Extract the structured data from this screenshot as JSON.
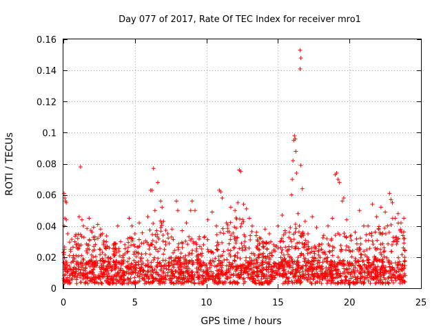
{
  "chart_data": {
    "type": "scatter",
    "title": "Day 077 of 2017, Rate Of TEC Index for receiver mro1",
    "xlabel": "GPS time / hours",
    "ylabel": "ROTI / TECUs",
    "xlim": [
      0,
      25
    ],
    "ylim": [
      0,
      0.16
    ],
    "xticks": [
      0,
      5,
      10,
      15,
      20,
      25
    ],
    "xtick_labels": [
      "0",
      "5",
      "10",
      "15",
      "20",
      "25"
    ],
    "yticks": [
      0,
      0.02,
      0.04,
      0.06,
      0.08,
      0.1,
      0.12,
      0.14,
      0.16
    ],
    "ytick_labels": [
      "0",
      "0.02",
      "0.04",
      "0.06",
      "0.08",
      "0.1",
      "0.12",
      "0.14",
      "0.16"
    ],
    "grid": true,
    "marker": "+",
    "color": "#ff0000",
    "series": [
      {
        "name": "ROTI",
        "points": [
          [
            0.05,
            0.061
          ],
          [
            0.1,
            0.058
          ],
          [
            0.15,
            0.056
          ],
          [
            0.2,
            0.055
          ],
          [
            0.1,
            0.045
          ],
          [
            0.2,
            0.044
          ],
          [
            0.05,
            0.04
          ],
          [
            0.3,
            0.035
          ],
          [
            0.5,
            0.025
          ],
          [
            0.7,
            0.021
          ],
          [
            0.9,
            0.028
          ],
          [
            1.0,
            0.032
          ],
          [
            1.1,
            0.046
          ],
          [
            1.2,
            0.078
          ],
          [
            1.3,
            0.044
          ],
          [
            1.4,
            0.04
          ],
          [
            1.6,
            0.024
          ],
          [
            1.8,
            0.045
          ],
          [
            2.0,
            0.036
          ],
          [
            2.2,
            0.033
          ],
          [
            2.4,
            0.041
          ],
          [
            2.6,
            0.038
          ],
          [
            2.8,
            0.028
          ],
          [
            3.0,
            0.03
          ],
          [
            3.2,
            0.026
          ],
          [
            3.5,
            0.022
          ],
          [
            3.8,
            0.04
          ],
          [
            4.0,
            0.03
          ],
          [
            4.3,
            0.028
          ],
          [
            4.6,
            0.045
          ],
          [
            4.8,
            0.04
          ],
          [
            5.0,
            0.035
          ],
          [
            5.3,
            0.042
          ],
          [
            5.6,
            0.029
          ],
          [
            5.9,
            0.046
          ],
          [
            6.1,
            0.063
          ],
          [
            6.2,
            0.063
          ],
          [
            6.3,
            0.077
          ],
          [
            6.4,
            0.05
          ],
          [
            6.6,
            0.068
          ],
          [
            6.8,
            0.056
          ],
          [
            6.9,
            0.052
          ],
          [
            7.0,
            0.043
          ],
          [
            7.3,
            0.035
          ],
          [
            7.6,
            0.038
          ],
          [
            7.9,
            0.056
          ],
          [
            8.0,
            0.05
          ],
          [
            8.3,
            0.037
          ],
          [
            8.6,
            0.042
          ],
          [
            8.9,
            0.05
          ],
          [
            9.0,
            0.056
          ],
          [
            9.2,
            0.05
          ],
          [
            9.5,
            0.033
          ],
          [
            9.8,
            0.028
          ],
          [
            10.1,
            0.044
          ],
          [
            10.4,
            0.049
          ],
          [
            10.7,
            0.04
          ],
          [
            10.9,
            0.063
          ],
          [
            11.0,
            0.062
          ],
          [
            11.1,
            0.058
          ],
          [
            11.4,
            0.042
          ],
          [
            11.7,
            0.052
          ],
          [
            12.0,
            0.05
          ],
          [
            12.2,
            0.055
          ],
          [
            12.3,
            0.076
          ],
          [
            12.4,
            0.075
          ],
          [
            12.6,
            0.054
          ],
          [
            12.8,
            0.051
          ],
          [
            13.0,
            0.045
          ],
          [
            13.2,
            0.04
          ],
          [
            13.5,
            0.036
          ],
          [
            13.8,
            0.032
          ],
          [
            14.1,
            0.038
          ],
          [
            14.4,
            0.035
          ],
          [
            14.7,
            0.028
          ],
          [
            15.0,
            0.04
          ],
          [
            15.3,
            0.047
          ],
          [
            15.5,
            0.037
          ],
          [
            15.8,
            0.036
          ],
          [
            15.95,
            0.06
          ],
          [
            16.0,
            0.07
          ],
          [
            16.05,
            0.082
          ],
          [
            16.1,
            0.095
          ],
          [
            16.15,
            0.098
          ],
          [
            16.2,
            0.096
          ],
          [
            16.25,
            0.088
          ],
          [
            16.3,
            0.074
          ],
          [
            16.4,
            0.048
          ],
          [
            16.5,
            0.04
          ],
          [
            16.55,
            0.153
          ],
          [
            16.6,
            0.148
          ],
          [
            16.55,
            0.141
          ],
          [
            16.6,
            0.079
          ],
          [
            16.7,
            0.064
          ],
          [
            16.9,
            0.043
          ],
          [
            17.1,
            0.035
          ],
          [
            17.4,
            0.046
          ],
          [
            17.7,
            0.039
          ],
          [
            17.9,
            0.028
          ],
          [
            18.2,
            0.034
          ],
          [
            18.5,
            0.04
          ],
          [
            18.8,
            0.045
          ],
          [
            19.0,
            0.073
          ],
          [
            19.1,
            0.074
          ],
          [
            19.2,
            0.07
          ],
          [
            19.3,
            0.068
          ],
          [
            19.5,
            0.056
          ],
          [
            19.6,
            0.058
          ],
          [
            19.8,
            0.044
          ],
          [
            20.1,
            0.034
          ],
          [
            20.4,
            0.036
          ],
          [
            20.7,
            0.05
          ],
          [
            21.0,
            0.04
          ],
          [
            21.3,
            0.04
          ],
          [
            21.6,
            0.054
          ],
          [
            21.9,
            0.046
          ],
          [
            22.2,
            0.052
          ],
          [
            22.5,
            0.049
          ],
          [
            22.8,
            0.061
          ],
          [
            22.9,
            0.057
          ],
          [
            23.0,
            0.055
          ],
          [
            23.2,
            0.045
          ],
          [
            23.4,
            0.048
          ],
          [
            23.6,
            0.042
          ],
          [
            23.8,
            0.045
          ]
        ],
        "band": {
          "x_range": [
            0,
            23.9
          ],
          "y_min": 0.003,
          "y_max_profile": [
            [
              0,
              0.03
            ],
            [
              1,
              0.036
            ],
            [
              2,
              0.04
            ],
            [
              3,
              0.034
            ],
            [
              4,
              0.03
            ],
            [
              5,
              0.034
            ],
            [
              6,
              0.04
            ],
            [
              6.7,
              0.046
            ],
            [
              7.5,
              0.034
            ],
            [
              8.5,
              0.036
            ],
            [
              9.5,
              0.032
            ],
            [
              10.5,
              0.036
            ],
            [
              11.5,
              0.042
            ],
            [
              12.3,
              0.05
            ],
            [
              13,
              0.04
            ],
            [
              14,
              0.03
            ],
            [
              15,
              0.032
            ],
            [
              16,
              0.044
            ],
            [
              16.8,
              0.036
            ],
            [
              17.5,
              0.03
            ],
            [
              18.5,
              0.034
            ],
            [
              19.5,
              0.036
            ],
            [
              20.5,
              0.032
            ],
            [
              21.5,
              0.036
            ],
            [
              22.5,
              0.044
            ],
            [
              23,
              0.048
            ],
            [
              23.9,
              0.036
            ]
          ],
          "density": 1500
        }
      }
    ]
  }
}
